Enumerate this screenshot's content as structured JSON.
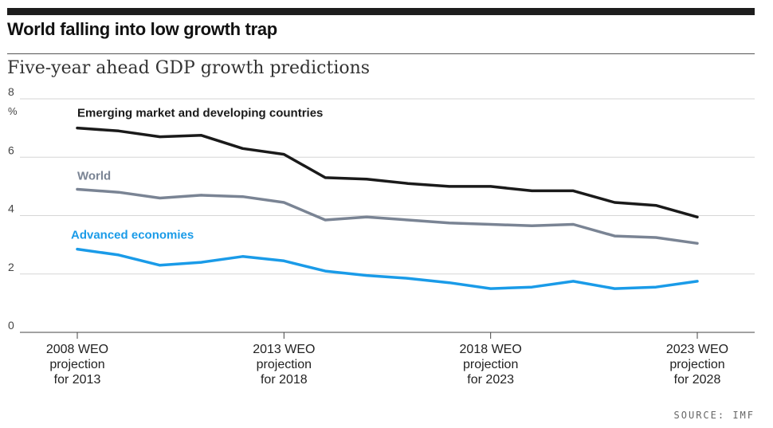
{
  "header": {
    "title": "World falling into low growth trap",
    "subtitle": "Five-year ahead GDP growth predictions",
    "source": "SOURCE: IMF"
  },
  "chart_data": {
    "type": "line",
    "ylabel": "%",
    "ylim": [
      0,
      8
    ],
    "yticks": [
      0,
      2,
      4,
      6,
      8
    ],
    "grid": true,
    "x": [
      2008,
      2009,
      2010,
      2011,
      2012,
      2013,
      2014,
      2015,
      2016,
      2017,
      2018,
      2019,
      2020,
      2021,
      2022,
      2023
    ],
    "xticks": [
      {
        "x": 2008,
        "label": [
          "2008 WEO",
          "projection",
          "for 2013"
        ]
      },
      {
        "x": 2013,
        "label": [
          "2013 WEO",
          "projection",
          "for 2018"
        ]
      },
      {
        "x": 2018,
        "label": [
          "2018 WEO",
          "projection",
          "for 2023"
        ]
      },
      {
        "x": 2023,
        "label": [
          "2023 WEO",
          "projection",
          "for 2028"
        ]
      }
    ],
    "series": [
      {
        "name": "Emerging market and developing countries",
        "color": "#1a1a1a",
        "values": [
          7.0,
          6.9,
          6.7,
          6.75,
          6.3,
          6.1,
          5.3,
          5.25,
          5.1,
          5.0,
          5.0,
          4.85,
          4.85,
          4.45,
          4.35,
          3.95
        ]
      },
      {
        "name": "World",
        "color": "#7a8494",
        "values": [
          4.9,
          4.8,
          4.6,
          4.7,
          4.65,
          4.45,
          3.85,
          3.95,
          3.85,
          3.75,
          3.7,
          3.65,
          3.7,
          3.3,
          3.25,
          3.05
        ]
      },
      {
        "name": "Advanced economies",
        "color": "#1a9be8",
        "values": [
          2.85,
          2.65,
          2.3,
          2.4,
          2.6,
          2.45,
          2.1,
          1.95,
          1.85,
          1.7,
          1.5,
          1.55,
          1.75,
          1.5,
          1.55,
          1.75
        ]
      }
    ]
  }
}
